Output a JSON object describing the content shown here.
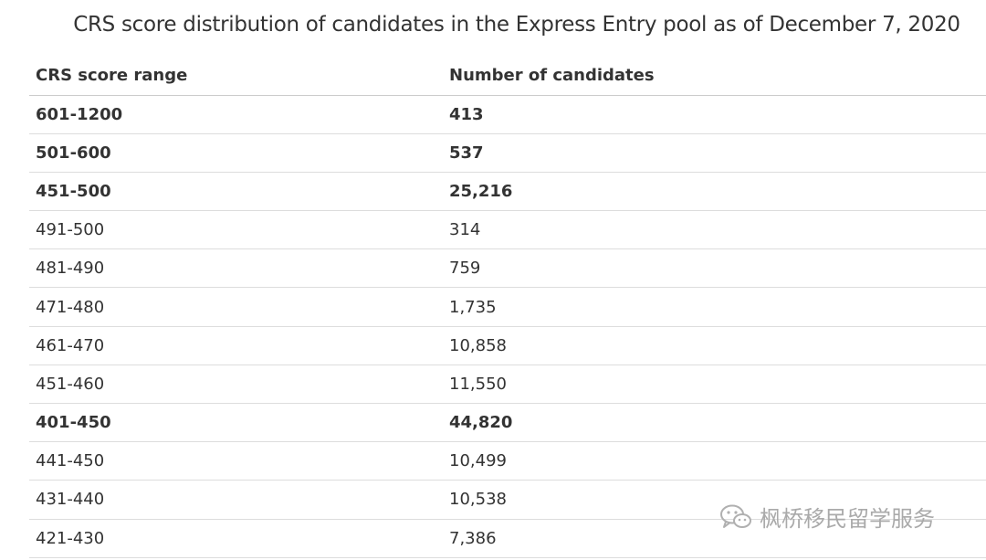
{
  "caption": "CRS score distribution of candidates in the Express Entry pool as of December 7, 2020",
  "table": {
    "headers": [
      "CRS score range",
      "Number of candidates"
    ],
    "rows": [
      {
        "range": "601-1200",
        "count": "413",
        "bold": true
      },
      {
        "range": "501-600",
        "count": "537",
        "bold": true
      },
      {
        "range": "451-500",
        "count": "25,216",
        "bold": true
      },
      {
        "range": "491-500",
        "count": "314",
        "bold": false
      },
      {
        "range": "481-490",
        "count": "759",
        "bold": false
      },
      {
        "range": "471-480",
        "count": "1,735",
        "bold": false
      },
      {
        "range": "461-470",
        "count": "10,858",
        "bold": false
      },
      {
        "range": "451-460",
        "count": "11,550",
        "bold": false
      },
      {
        "range": "401-450",
        "count": "44,820",
        "bold": true
      },
      {
        "range": "441-450",
        "count": "10,499",
        "bold": false
      },
      {
        "range": "431-440",
        "count": "10,538",
        "bold": false
      },
      {
        "range": "421-430",
        "count": "7,386",
        "bold": false
      }
    ]
  },
  "watermark": {
    "text": "枫桥移民留学服务",
    "icon": "wechat-icon"
  }
}
